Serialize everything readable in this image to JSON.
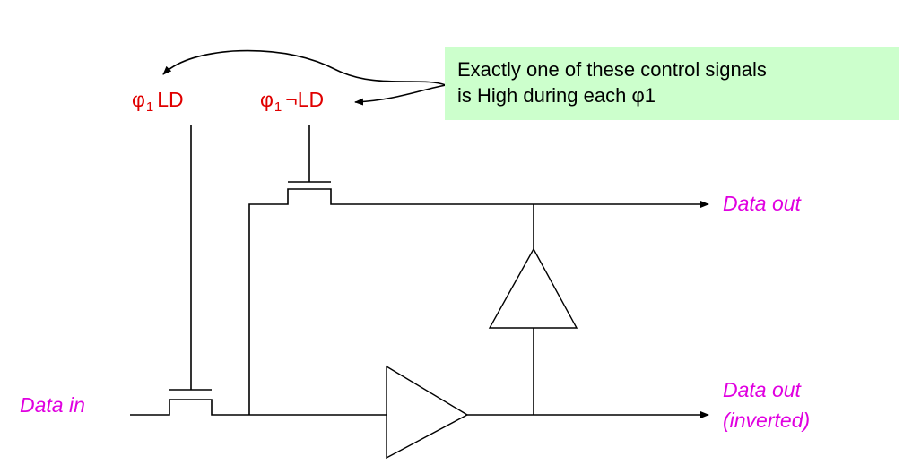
{
  "signals": {
    "ld": {
      "phi": "φ",
      "sub": "1",
      "text": "LD"
    },
    "not_ld": {
      "phi": "φ",
      "sub": "1",
      "text": "¬LD"
    }
  },
  "note": {
    "line1": "Exactly one of these control signals",
    "line2": "is High during each φ1"
  },
  "io": {
    "data_in": "Data in",
    "data_out": "Data out",
    "data_out_inverted_line1": "Data out",
    "data_out_inverted_line2": "(inverted)"
  },
  "colors": {
    "control_signal": "#e00000",
    "io_label": "#e000e0",
    "note_background": "#ccffcc"
  }
}
